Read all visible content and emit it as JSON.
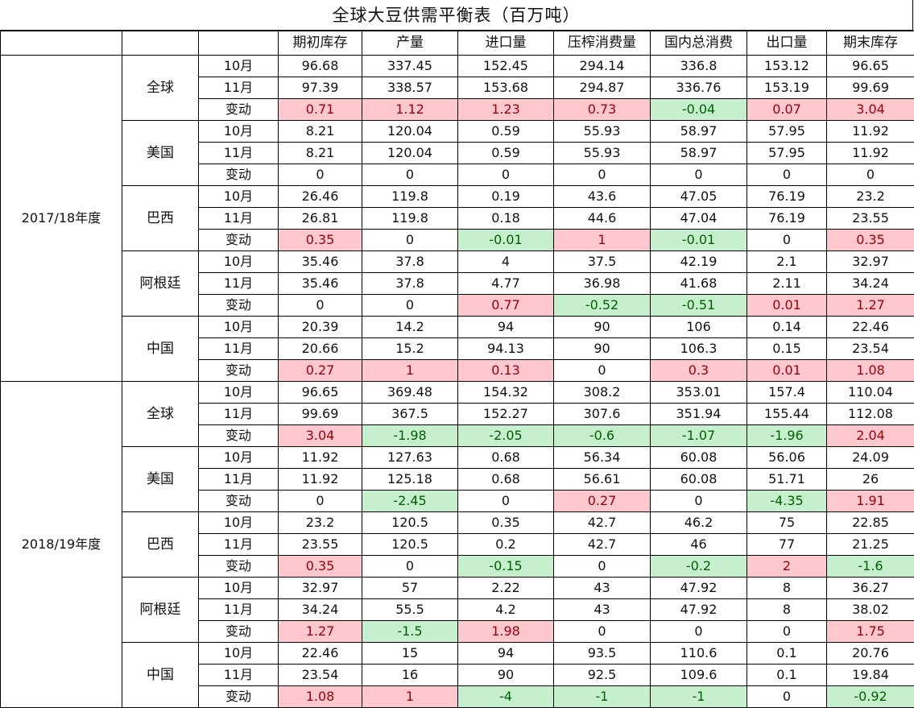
{
  "title": "全球大豆供需平衡表（百万吨）",
  "columns": [
    "期初库存",
    "产量",
    "进口量",
    "压榨消费量",
    "国内总消费",
    "出口量",
    "期末库存"
  ],
  "colors": {
    "up_bg": "#ffc7ce",
    "up_text": "#9c0006",
    "down_bg": "#c6efce",
    "down_text": "#006100"
  },
  "years": [
    {
      "label": "2017/18年度",
      "regions": [
        {
          "name": "全球",
          "rows": [
            {
              "label": "10月",
              "cells": [
                {
                  "v": "96.68"
                },
                {
                  "v": "337.45"
                },
                {
                  "v": "152.45"
                },
                {
                  "v": "294.14"
                },
                {
                  "v": "336.8"
                },
                {
                  "v": "153.12"
                },
                {
                  "v": "96.65"
                }
              ]
            },
            {
              "label": "11月",
              "cells": [
                {
                  "v": "97.39"
                },
                {
                  "v": "338.57"
                },
                {
                  "v": "153.68"
                },
                {
                  "v": "294.87"
                },
                {
                  "v": "336.76"
                },
                {
                  "v": "153.19"
                },
                {
                  "v": "99.69"
                }
              ]
            },
            {
              "label": "变动",
              "cells": [
                {
                  "v": "0.71",
                  "h": "pos"
                },
                {
                  "v": "1.12",
                  "h": "pos"
                },
                {
                  "v": "1.23",
                  "h": "pos"
                },
                {
                  "v": "0.73",
                  "h": "pos"
                },
                {
                  "v": "-0.04",
                  "h": "neg"
                },
                {
                  "v": "0.07",
                  "h": "pos"
                },
                {
                  "v": "3.04",
                  "h": "pos"
                }
              ]
            }
          ]
        },
        {
          "name": "美国",
          "rows": [
            {
              "label": "10月",
              "cells": [
                {
                  "v": "8.21"
                },
                {
                  "v": "120.04"
                },
                {
                  "v": "0.59"
                },
                {
                  "v": "55.93"
                },
                {
                  "v": "58.97"
                },
                {
                  "v": "57.95"
                },
                {
                  "v": "11.92"
                }
              ]
            },
            {
              "label": "11月",
              "cells": [
                {
                  "v": "8.21"
                },
                {
                  "v": "120.04"
                },
                {
                  "v": "0.59"
                },
                {
                  "v": "55.93"
                },
                {
                  "v": "58.97"
                },
                {
                  "v": "57.95"
                },
                {
                  "v": "11.92"
                }
              ]
            },
            {
              "label": "变动",
              "cells": [
                {
                  "v": "0"
                },
                {
                  "v": "0"
                },
                {
                  "v": "0"
                },
                {
                  "v": "0"
                },
                {
                  "v": "0"
                },
                {
                  "v": "0"
                },
                {
                  "v": "0"
                }
              ]
            }
          ]
        },
        {
          "name": "巴西",
          "rows": [
            {
              "label": "10月",
              "cells": [
                {
                  "v": "26.46"
                },
                {
                  "v": "119.8"
                },
                {
                  "v": "0.19"
                },
                {
                  "v": "43.6"
                },
                {
                  "v": "47.05"
                },
                {
                  "v": "76.19"
                },
                {
                  "v": "23.2"
                }
              ]
            },
            {
              "label": "11月",
              "cells": [
                {
                  "v": "26.81"
                },
                {
                  "v": "119.8"
                },
                {
                  "v": "0.18"
                },
                {
                  "v": "44.6"
                },
                {
                  "v": "47.04"
                },
                {
                  "v": "76.19"
                },
                {
                  "v": "23.55"
                }
              ]
            },
            {
              "label": "变动",
              "cells": [
                {
                  "v": "0.35",
                  "h": "pos"
                },
                {
                  "v": "0"
                },
                {
                  "v": "-0.01",
                  "h": "neg"
                },
                {
                  "v": "1",
                  "h": "pos"
                },
                {
                  "v": "-0.01",
                  "h": "neg"
                },
                {
                  "v": "0"
                },
                {
                  "v": "0.35",
                  "h": "pos"
                }
              ]
            }
          ]
        },
        {
          "name": "阿根廷",
          "rows": [
            {
              "label": "10月",
              "cells": [
                {
                  "v": "35.46"
                },
                {
                  "v": "37.8"
                },
                {
                  "v": "4"
                },
                {
                  "v": "37.5"
                },
                {
                  "v": "42.19"
                },
                {
                  "v": "2.1"
                },
                {
                  "v": "32.97"
                }
              ]
            },
            {
              "label": "11月",
              "cells": [
                {
                  "v": "35.46"
                },
                {
                  "v": "37.8"
                },
                {
                  "v": "4.77"
                },
                {
                  "v": "36.98"
                },
                {
                  "v": "41.68"
                },
                {
                  "v": "2.11"
                },
                {
                  "v": "34.24"
                }
              ]
            },
            {
              "label": "变动",
              "cells": [
                {
                  "v": "0"
                },
                {
                  "v": "0"
                },
                {
                  "v": "0.77",
                  "h": "pos"
                },
                {
                  "v": "-0.52",
                  "h": "neg"
                },
                {
                  "v": "-0.51",
                  "h": "neg"
                },
                {
                  "v": "0.01",
                  "h": "pos"
                },
                {
                  "v": "1.27",
                  "h": "pos"
                }
              ]
            }
          ]
        },
        {
          "name": "中国",
          "rows": [
            {
              "label": "10月",
              "cells": [
                {
                  "v": "20.39"
                },
                {
                  "v": "14.2"
                },
                {
                  "v": "94"
                },
                {
                  "v": "90"
                },
                {
                  "v": "106"
                },
                {
                  "v": "0.14"
                },
                {
                  "v": "22.46"
                }
              ]
            },
            {
              "label": "11月",
              "cells": [
                {
                  "v": "20.66"
                },
                {
                  "v": "15.2"
                },
                {
                  "v": "94.13"
                },
                {
                  "v": "90"
                },
                {
                  "v": "106.3"
                },
                {
                  "v": "0.15"
                },
                {
                  "v": "23.54"
                }
              ]
            },
            {
              "label": "变动",
              "cells": [
                {
                  "v": "0.27",
                  "h": "pos"
                },
                {
                  "v": "1",
                  "h": "pos"
                },
                {
                  "v": "0.13",
                  "h": "pos"
                },
                {
                  "v": "0"
                },
                {
                  "v": "0.3",
                  "h": "pos"
                },
                {
                  "v": "0.01",
                  "h": "pos"
                },
                {
                  "v": "1.08",
                  "h": "pos"
                }
              ]
            }
          ]
        }
      ]
    },
    {
      "label": "2018/19年度",
      "regions": [
        {
          "name": "全球",
          "rows": [
            {
              "label": "10月",
              "cells": [
                {
                  "v": "96.65"
                },
                {
                  "v": "369.48"
                },
                {
                  "v": "154.32"
                },
                {
                  "v": "308.2"
                },
                {
                  "v": "353.01"
                },
                {
                  "v": "157.4"
                },
                {
                  "v": "110.04"
                }
              ]
            },
            {
              "label": "11月",
              "cells": [
                {
                  "v": "99.69"
                },
                {
                  "v": "367.5"
                },
                {
                  "v": "152.27"
                },
                {
                  "v": "307.6"
                },
                {
                  "v": "351.94"
                },
                {
                  "v": "155.44"
                },
                {
                  "v": "112.08"
                }
              ]
            },
            {
              "label": "变动",
              "cells": [
                {
                  "v": "3.04",
                  "h": "pos"
                },
                {
                  "v": "-1.98",
                  "h": "neg"
                },
                {
                  "v": "-2.05",
                  "h": "neg"
                },
                {
                  "v": "-0.6",
                  "h": "neg"
                },
                {
                  "v": "-1.07",
                  "h": "neg"
                },
                {
                  "v": "-1.96",
                  "h": "neg"
                },
                {
                  "v": "2.04",
                  "h": "pos"
                }
              ]
            }
          ]
        },
        {
          "name": "美国",
          "rows": [
            {
              "label": "10月",
              "cells": [
                {
                  "v": "11.92"
                },
                {
                  "v": "127.63"
                },
                {
                  "v": "0.68"
                },
                {
                  "v": "56.34"
                },
                {
                  "v": "60.08"
                },
                {
                  "v": "56.06"
                },
                {
                  "v": "24.09"
                }
              ]
            },
            {
              "label": "11月",
              "cells": [
                {
                  "v": "11.92"
                },
                {
                  "v": "125.18"
                },
                {
                  "v": "0.68"
                },
                {
                  "v": "56.61"
                },
                {
                  "v": "60.08"
                },
                {
                  "v": "51.71"
                },
                {
                  "v": "26"
                }
              ]
            },
            {
              "label": "变动",
              "cells": [
                {
                  "v": "0"
                },
                {
                  "v": "-2.45",
                  "h": "neg"
                },
                {
                  "v": "0"
                },
                {
                  "v": "0.27",
                  "h": "pos"
                },
                {
                  "v": "0"
                },
                {
                  "v": "-4.35",
                  "h": "neg"
                },
                {
                  "v": "1.91",
                  "h": "pos"
                }
              ]
            }
          ]
        },
        {
          "name": "巴西",
          "rows": [
            {
              "label": "10月",
              "cells": [
                {
                  "v": "23.2"
                },
                {
                  "v": "120.5"
                },
                {
                  "v": "0.35"
                },
                {
                  "v": "42.7"
                },
                {
                  "v": "46.2"
                },
                {
                  "v": "75"
                },
                {
                  "v": "22.85"
                }
              ]
            },
            {
              "label": "11月",
              "cells": [
                {
                  "v": "23.55"
                },
                {
                  "v": "120.5"
                },
                {
                  "v": "0.2"
                },
                {
                  "v": "42.7"
                },
                {
                  "v": "46"
                },
                {
                  "v": "77"
                },
                {
                  "v": "21.25"
                }
              ]
            },
            {
              "label": "变动",
              "cells": [
                {
                  "v": "0.35",
                  "h": "pos"
                },
                {
                  "v": "0"
                },
                {
                  "v": "-0.15",
                  "h": "neg"
                },
                {
                  "v": "0"
                },
                {
                  "v": "-0.2",
                  "h": "neg"
                },
                {
                  "v": "2",
                  "h": "pos"
                },
                {
                  "v": "-1.6",
                  "h": "neg"
                }
              ]
            }
          ]
        },
        {
          "name": "阿根廷",
          "rows": [
            {
              "label": "10月",
              "cells": [
                {
                  "v": "32.97"
                },
                {
                  "v": "57"
                },
                {
                  "v": "2.22"
                },
                {
                  "v": "43"
                },
                {
                  "v": "47.92"
                },
                {
                  "v": "8"
                },
                {
                  "v": "36.27"
                }
              ]
            },
            {
              "label": "11月",
              "cells": [
                {
                  "v": "34.24"
                },
                {
                  "v": "55.5"
                },
                {
                  "v": "4.2"
                },
                {
                  "v": "43"
                },
                {
                  "v": "47.92"
                },
                {
                  "v": "8"
                },
                {
                  "v": "38.02"
                }
              ]
            },
            {
              "label": "变动",
              "cells": [
                {
                  "v": "1.27",
                  "h": "pos"
                },
                {
                  "v": "-1.5",
                  "h": "neg"
                },
                {
                  "v": "1.98",
                  "h": "pos"
                },
                {
                  "v": "0"
                },
                {
                  "v": "0"
                },
                {
                  "v": "0"
                },
                {
                  "v": "1.75",
                  "h": "pos"
                }
              ]
            }
          ]
        },
        {
          "name": "中国",
          "rows": [
            {
              "label": "10月",
              "cells": [
                {
                  "v": "22.46"
                },
                {
                  "v": "15"
                },
                {
                  "v": "94"
                },
                {
                  "v": "93.5"
                },
                {
                  "v": "110.6"
                },
                {
                  "v": "0.1"
                },
                {
                  "v": "20.76"
                }
              ]
            },
            {
              "label": "11月",
              "cells": [
                {
                  "v": "23.54"
                },
                {
                  "v": "16"
                },
                {
                  "v": "90"
                },
                {
                  "v": "92.5"
                },
                {
                  "v": "109.6"
                },
                {
                  "v": "0.1"
                },
                {
                  "v": "19.84"
                }
              ]
            },
            {
              "label": "变动",
              "cells": [
                {
                  "v": "1.08",
                  "h": "pos"
                },
                {
                  "v": "1",
                  "h": "pos"
                },
                {
                  "v": "-4",
                  "h": "neg"
                },
                {
                  "v": "-1",
                  "h": "neg"
                },
                {
                  "v": "-1",
                  "h": "neg"
                },
                {
                  "v": "0"
                },
                {
                  "v": "-0.92",
                  "h": "neg"
                }
              ]
            }
          ]
        }
      ]
    }
  ]
}
